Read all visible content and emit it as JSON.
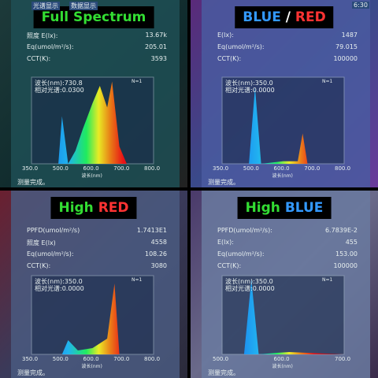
{
  "panels": [
    {
      "title": [
        {
          "text": "Full Spectrum",
          "color": "#33dd33"
        }
      ],
      "tabs": [
        "光谱显示",
        "数据显示"
      ],
      "readings": [
        {
          "label": "照度 E(lx):",
          "value": "13.67k"
        },
        {
          "label": "Eq(umol/m²/s):",
          "value": "205.01"
        },
        {
          "label": "CCT(K):",
          "value": "3593"
        }
      ],
      "chart": {
        "cursor": [
          "波长(nm):730.8",
          "相对光谱:0.0300"
        ],
        "n": "N=1",
        "ticks": [
          "350.0",
          "500.0",
          "600.0",
          "700.0",
          "800.0"
        ],
        "axis_title": "波长(nm)"
      },
      "status": "测量完成。"
    },
    {
      "title": [
        {
          "text": "BLUE",
          "color": "#3399ff"
        },
        {
          "text": " / ",
          "color": "#ffffff"
        },
        {
          "text": "RED",
          "color": "#ff3333"
        }
      ],
      "tabs": [
        "6:30"
      ],
      "readings": [
        {
          "label": "E(lx):",
          "value": "1487"
        },
        {
          "label": "Eq(umol/m²/s):",
          "value": "79.015"
        },
        {
          "label": "CCT(K):",
          "value": "100000"
        }
      ],
      "chart": {
        "cursor": [
          "波长(nm):350.0",
          "相对光谱:0.0000"
        ],
        "n": "N=1",
        "ticks": [
          "350.0",
          "500.0",
          "600.0",
          "700.0",
          "800.0"
        ],
        "axis_title": "波长(nm)"
      },
      "status": "测量完成。"
    },
    {
      "title": [
        {
          "text": "High ",
          "color": "#33dd33"
        },
        {
          "text": "RED",
          "color": "#ff3333"
        }
      ],
      "tabs": [],
      "readings": [
        {
          "label": "PPFD(umol/m²/s)",
          "value": "1.7413E1"
        },
        {
          "label": "照度 E(lx)",
          "value": "4558"
        },
        {
          "label": "Eq(umol/m²/s):",
          "value": "108.26"
        },
        {
          "label": "CCT(K):",
          "value": "3080"
        }
      ],
      "chart": {
        "cursor": [
          "波长(nm):350.0",
          "相对光谱:0.0000"
        ],
        "n": "N=1",
        "ticks": [
          "350.0",
          "500.0",
          "600.0",
          "700.0",
          "800.0"
        ],
        "axis_title": "波长(nm)"
      },
      "status": "测量完成。"
    },
    {
      "title": [
        {
          "text": "High ",
          "color": "#33dd33"
        },
        {
          "text": "BLUE",
          "color": "#3399ff"
        }
      ],
      "tabs": [],
      "readings": [
        {
          "label": "PPFD(umol/m²/s):",
          "value": "6.7839E-2"
        },
        {
          "label": "E(lx):",
          "value": "455"
        },
        {
          "label": "Eq(umol/m²/s):",
          "value": "153.00"
        },
        {
          "label": "CCT(K):",
          "value": "100000"
        }
      ],
      "chart": {
        "cursor": [
          "波长(nm):350.0",
          "相对光谱:0.0000"
        ],
        "n": "N=1",
        "ticks": [
          "500.0",
          "600.0",
          "700.0"
        ],
        "axis_title": "波长(nm)"
      },
      "status": "测量完成。"
    }
  ]
}
